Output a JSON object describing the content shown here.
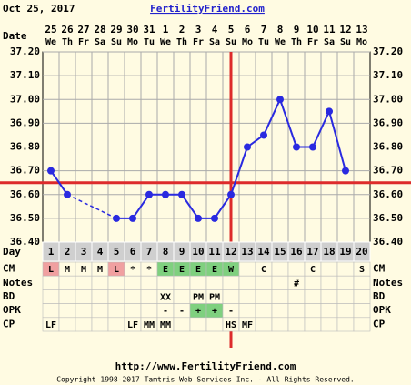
{
  "header": {
    "date": "Oct 25, 2017",
    "site": "FertilityFriend.com"
  },
  "chart_data": {
    "type": "line",
    "x_label": "Date",
    "dates": [
      "25",
      "26",
      "27",
      "28",
      "29",
      "30",
      "31",
      "1",
      "2",
      "3",
      "4",
      "5",
      "6",
      "7",
      "8",
      "9",
      "10",
      "11",
      "12",
      "13"
    ],
    "weekdays": [
      "We",
      "Th",
      "Fr",
      "Sa",
      "Su",
      "Mo",
      "Tu",
      "We",
      "Th",
      "Fr",
      "Sa",
      "Su",
      "Mo",
      "Tu",
      "We",
      "Th",
      "Fr",
      "Sa",
      "Su",
      "Mo"
    ],
    "day_label": "Day",
    "cycle_days": [
      1,
      2,
      3,
      4,
      5,
      6,
      7,
      8,
      9,
      10,
      11,
      12,
      13,
      14,
      15,
      16,
      17,
      18,
      19,
      20
    ],
    "values": [
      36.7,
      36.6,
      null,
      null,
      36.5,
      36.5,
      36.6,
      36.6,
      36.6,
      36.5,
      36.5,
      36.6,
      36.8,
      36.85,
      37.0,
      36.8,
      36.8,
      36.95,
      36.7,
      null
    ],
    "color": "#2a2ae0",
    "ylim": [
      36.4,
      37.2
    ],
    "yticks": [
      {
        "value": 36.4,
        "label": "36.40"
      },
      {
        "value": 36.5,
        "label": "36.50"
      },
      {
        "value": 36.6,
        "label": "36.60"
      },
      {
        "value": 36.7,
        "label": "36.70"
      },
      {
        "value": 36.8,
        "label": "36.80"
      },
      {
        "value": 36.9,
        "label": "36.90"
      },
      {
        "value": 37.0,
        "label": "37.00"
      },
      {
        "value": 37.1,
        "label": "37.10"
      },
      {
        "value": 37.2,
        "label": "37.20"
      }
    ],
    "grid": true,
    "coverline": 36.65,
    "ovulation_day": 12,
    "reference_color": "#dd2b2b",
    "cell_colors": {
      "L": "#f0a0a0",
      "E": "#7fd07f",
      "W": "#7fd07f",
      "+": "#7fd07f"
    },
    "rows": [
      {
        "label": "CM",
        "cells": [
          "L",
          "M",
          "M",
          "M",
          "L",
          "*",
          "*",
          "E",
          "E",
          "E",
          "E",
          "W",
          null,
          "C",
          null,
          null,
          "C",
          null,
          null,
          "S"
        ]
      },
      {
        "label": "Notes",
        "cells": [
          null,
          null,
          null,
          null,
          null,
          null,
          null,
          null,
          null,
          null,
          null,
          null,
          null,
          null,
          null,
          "#",
          null,
          null,
          null,
          null
        ]
      },
      {
        "label": "BD",
        "cells": [
          null,
          null,
          null,
          null,
          null,
          null,
          null,
          "XX",
          null,
          "PM",
          "PM",
          null,
          null,
          null,
          null,
          null,
          null,
          null,
          null,
          null
        ]
      },
      {
        "label": "OPK",
        "cells": [
          null,
          null,
          null,
          null,
          null,
          null,
          null,
          "-",
          "-",
          "+",
          "+",
          "-",
          null,
          null,
          null,
          null,
          null,
          null,
          null,
          null
        ]
      },
      {
        "label": "CP",
        "cells": [
          "LF",
          null,
          null,
          null,
          null,
          "LF",
          "MM",
          "MM",
          null,
          null,
          null,
          "HS",
          "MF",
          null,
          null,
          null,
          null,
          null,
          null,
          null
        ]
      }
    ]
  },
  "footer": {
    "url": "http://www.FertilityFriend.com",
    "copyright": "Copyright 1998-2017 Tamtris Web Services Inc. - All Rights Reserved."
  }
}
